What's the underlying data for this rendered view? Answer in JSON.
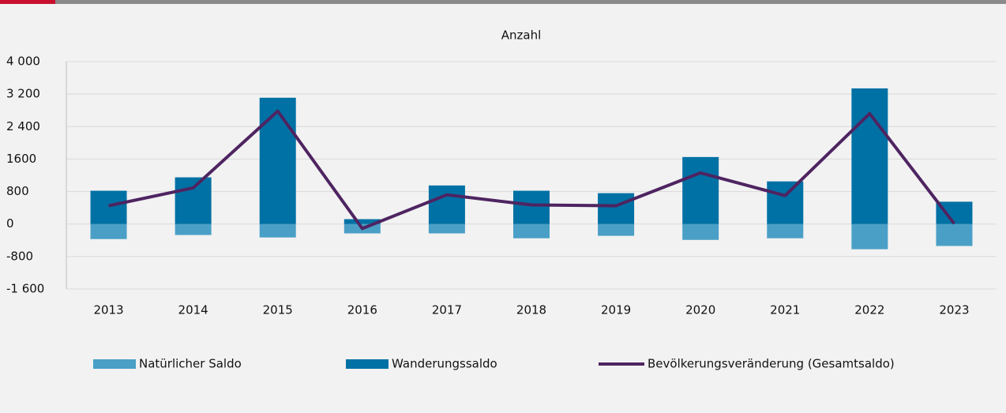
{
  "chart_data": {
    "type": "bar-line",
    "title": "Anzahl",
    "categories": [
      "2013",
      "2014",
      "2015",
      "2016",
      "2017",
      "2018",
      "2019",
      "2020",
      "2021",
      "2022",
      "2023"
    ],
    "series": [
      {
        "name": "Natürlicher Saldo",
        "type": "bar",
        "color": "#4a9fc6",
        "values": [
          -370,
          -270,
          -330,
          -230,
          -230,
          -350,
          -290,
          -390,
          -350,
          -620,
          -540
        ]
      },
      {
        "name": "Wanderungssaldo",
        "type": "bar",
        "color": "#0071a4",
        "values": [
          820,
          1150,
          3110,
          120,
          950,
          820,
          760,
          1650,
          1050,
          3340,
          550
        ]
      },
      {
        "name": "Bevölkerungsveränderung (Gesamtsaldo)",
        "type": "line",
        "color": "#4e2461",
        "values": [
          450,
          890,
          2780,
          -110,
          720,
          470,
          450,
          1260,
          700,
          2720,
          10
        ]
      }
    ],
    "ylim": [
      -1600,
      4000
    ],
    "yticks": [
      {
        "value": -1600,
        "label": "-1 600"
      },
      -800,
      0,
      800,
      {
        "value": 1600,
        "label": "1600"
      },
      {
        "value": 2400,
        "label": "2 400"
      },
      {
        "value": 3200,
        "label": "3 200"
      },
      {
        "value": 4000,
        "label": "4 000"
      }
    ],
    "grid": true,
    "legend": "bottom"
  }
}
